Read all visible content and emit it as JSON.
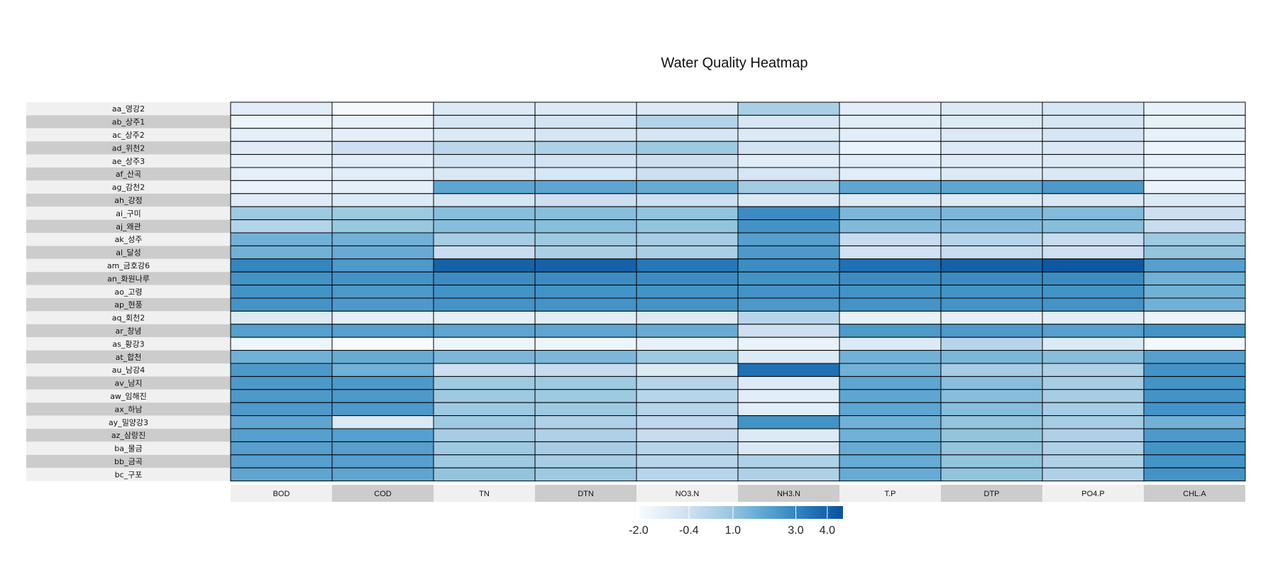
{
  "chart_data": {
    "type": "heatmap",
    "title": "Water Quality Heatmap",
    "columns": [
      "BOD",
      "COD",
      "TN",
      "DTN",
      "NO3.N",
      "NH3.N",
      "T.P",
      "DTP",
      "PO4.P",
      "CHL.A"
    ],
    "rows": [
      "aa_영강2",
      "ab_상주1",
      "ac_상주2",
      "ad_위천2",
      "ae_상주3",
      "af_산곡",
      "ag_감천2",
      "ah_강정",
      "ai_구미",
      "aj_왜관",
      "ak_성주",
      "al_달성",
      "am_금호강6",
      "an_화원나루",
      "ao_고령",
      "ap_현풍",
      "aq_회천2",
      "ar_창녕",
      "as_황강3",
      "at_합천",
      "au_남강4",
      "av_남지",
      "aw_임해진",
      "ax_하남",
      "ay_밀양강3",
      "az_삼랑진",
      "ba_물금",
      "bb_금곡",
      "bc_구포"
    ],
    "values": [
      [
        -1.2,
        -1.9,
        -1.0,
        -1.0,
        -1.0,
        0.5,
        -1.2,
        -1.0,
        -0.8,
        -1.4
      ],
      [
        -1.6,
        -1.4,
        -0.8,
        -0.6,
        0.3,
        -0.8,
        -1.2,
        -1.0,
        -0.8,
        -1.4
      ],
      [
        -1.3,
        -1.3,
        -1.0,
        -0.8,
        -0.8,
        -1.0,
        -1.2,
        -1.0,
        -0.8,
        -1.4
      ],
      [
        -1.1,
        -0.4,
        0.1,
        0.4,
        0.8,
        -0.6,
        -1.5,
        -1.0,
        -0.9,
        -1.6
      ],
      [
        -1.3,
        -1.2,
        -0.6,
        -0.6,
        -0.4,
        -1.2,
        -1.2,
        -1.1,
        -1.0,
        -1.4
      ],
      [
        -1.3,
        -1.2,
        -0.9,
        -0.8,
        -0.4,
        -0.8,
        -1.2,
        -1.0,
        -0.9,
        -1.4
      ],
      [
        -1.5,
        -1.3,
        2.0,
        2.0,
        1.8,
        0.7,
        2.0,
        2.0,
        2.4,
        -1.5
      ],
      [
        -1.1,
        -1.0,
        -0.7,
        -0.4,
        -0.4,
        -0.9,
        -1.0,
        -1.0,
        -0.9,
        -1.0
      ],
      [
        0.8,
        0.8,
        1.2,
        1.2,
        1.0,
        2.8,
        1.4,
        1.4,
        1.3,
        -0.4
      ],
      [
        0.3,
        0.9,
        1.2,
        1.2,
        1.0,
        2.6,
        1.3,
        1.3,
        1.2,
        -0.2
      ],
      [
        1.6,
        1.6,
        0.6,
        0.8,
        0.6,
        2.2,
        -0.2,
        0.2,
        -0.2,
        0.8
      ],
      [
        1.6,
        1.8,
        -0.2,
        0.5,
        0.5,
        2.4,
        -0.5,
        -0.2,
        -0.4,
        1.0
      ],
      [
        3.0,
        2.4,
        4.0,
        4.0,
        3.4,
        2.8,
        3.6,
        4.0,
        4.3,
        2.2
      ],
      [
        2.6,
        2.6,
        2.8,
        2.8,
        2.8,
        2.6,
        2.8,
        2.8,
        2.8,
        1.6
      ],
      [
        2.6,
        2.4,
        2.6,
        2.6,
        2.6,
        2.6,
        2.6,
        2.6,
        2.6,
        1.6
      ],
      [
        2.6,
        2.4,
        2.6,
        2.6,
        2.6,
        2.4,
        2.6,
        2.6,
        2.6,
        1.6
      ],
      [
        -1.0,
        -1.3,
        -1.3,
        -1.2,
        -1.0,
        0.2,
        -1.4,
        -1.3,
        -1.2,
        -1.6
      ],
      [
        2.2,
        2.2,
        2.0,
        2.0,
        1.8,
        -0.4,
        2.4,
        2.4,
        2.2,
        2.6
      ],
      [
        -1.6,
        -2.0,
        -1.6,
        -1.6,
        -1.4,
        -1.5,
        -1.0,
        0.2,
        -1.0,
        -1.8
      ],
      [
        1.6,
        1.8,
        1.4,
        1.4,
        0.8,
        -1.0,
        1.6,
        1.4,
        1.2,
        2.2
      ],
      [
        2.4,
        1.6,
        -0.4,
        -0.2,
        -1.0,
        3.6,
        1.6,
        0.6,
        0.4,
        2.6
      ],
      [
        2.4,
        2.4,
        0.8,
        0.8,
        0.2,
        -1.0,
        2.0,
        1.2,
        0.6,
        2.6
      ],
      [
        2.4,
        2.4,
        0.8,
        0.8,
        0.2,
        -1.2,
        2.0,
        1.2,
        0.6,
        2.6
      ],
      [
        2.4,
        2.4,
        0.8,
        0.8,
        0.2,
        -1.2,
        2.0,
        1.2,
        0.6,
        2.6
      ],
      [
        2.0,
        -0.9,
        0.8,
        0.4,
        0.0,
        2.6,
        1.6,
        1.0,
        0.6,
        1.6
      ],
      [
        2.2,
        2.2,
        0.6,
        0.4,
        -0.2,
        -1.0,
        1.6,
        1.0,
        0.4,
        2.4
      ],
      [
        2.2,
        2.2,
        0.8,
        0.6,
        0.2,
        -0.9,
        1.8,
        1.0,
        0.4,
        2.6
      ],
      [
        2.2,
        2.2,
        0.8,
        0.6,
        0.2,
        0.4,
        1.8,
        1.0,
        0.4,
        2.6
      ],
      [
        2.0,
        2.0,
        1.0,
        0.8,
        0.2,
        0.4,
        1.8,
        1.0,
        0.4,
        2.6
      ]
    ],
    "legend": {
      "position": "bottom",
      "min": -2.0,
      "max": 4.5,
      "ticks": [
        -2.0,
        -0.4,
        1.0,
        3.0,
        4.0
      ],
      "tick_labels": [
        "-2.0",
        "-0.4",
        "1.0",
        "3.0",
        "4.0"
      ]
    },
    "colors": {
      "scale": [
        "#f7fbff",
        "#deebf7",
        "#c6dbef",
        "#9ecae1",
        "#6baed6",
        "#4292c6",
        "#2171b5",
        "#08519c"
      ],
      "label_band_light": "#f0f0f0",
      "label_band_dark": "#cccccc",
      "cell_border": "#000000"
    }
  }
}
